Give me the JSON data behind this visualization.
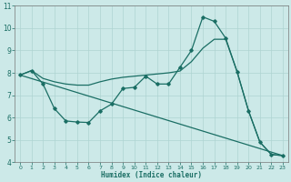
{
  "xlabel": "Humidex (Indice chaleur)",
  "xlim": [
    -0.5,
    23.5
  ],
  "ylim": [
    4,
    11
  ],
  "yticks": [
    4,
    5,
    6,
    7,
    8,
    9,
    10,
    11
  ],
  "xticks": [
    0,
    1,
    2,
    3,
    4,
    5,
    6,
    7,
    8,
    9,
    10,
    11,
    12,
    13,
    14,
    15,
    16,
    17,
    18,
    19,
    20,
    21,
    22,
    23
  ],
  "bg_color": "#cce9e8",
  "grid_color": "#aed4d2",
  "line_color": "#1a6e64",
  "line1_x": [
    0,
    1,
    2,
    3,
    4,
    5,
    6,
    7,
    8,
    9,
    10,
    11,
    12,
    13,
    14,
    15,
    16,
    17,
    18,
    19,
    20,
    21,
    22,
    23
  ],
  "line1_y": [
    7.9,
    8.1,
    7.5,
    6.4,
    5.85,
    5.8,
    5.78,
    6.3,
    6.6,
    7.3,
    7.35,
    7.85,
    7.5,
    7.5,
    8.25,
    9.0,
    10.5,
    10.3,
    9.55,
    8.05,
    6.3,
    4.9,
    4.35,
    4.3
  ],
  "line2_x": [
    0,
    1,
    2,
    3,
    4,
    5,
    6,
    7,
    8,
    9,
    10,
    11,
    12,
    13,
    14,
    15,
    16,
    17,
    18,
    19,
    20,
    21,
    22,
    23
  ],
  "line2_y": [
    7.9,
    8.1,
    7.75,
    7.6,
    7.5,
    7.45,
    7.45,
    7.6,
    7.72,
    7.8,
    7.85,
    7.9,
    7.95,
    8.0,
    8.08,
    8.5,
    9.1,
    9.5,
    9.5,
    8.05,
    6.3,
    4.9,
    4.35,
    4.3
  ],
  "line3_x": [
    0,
    23
  ],
  "line3_y": [
    7.9,
    4.3
  ]
}
